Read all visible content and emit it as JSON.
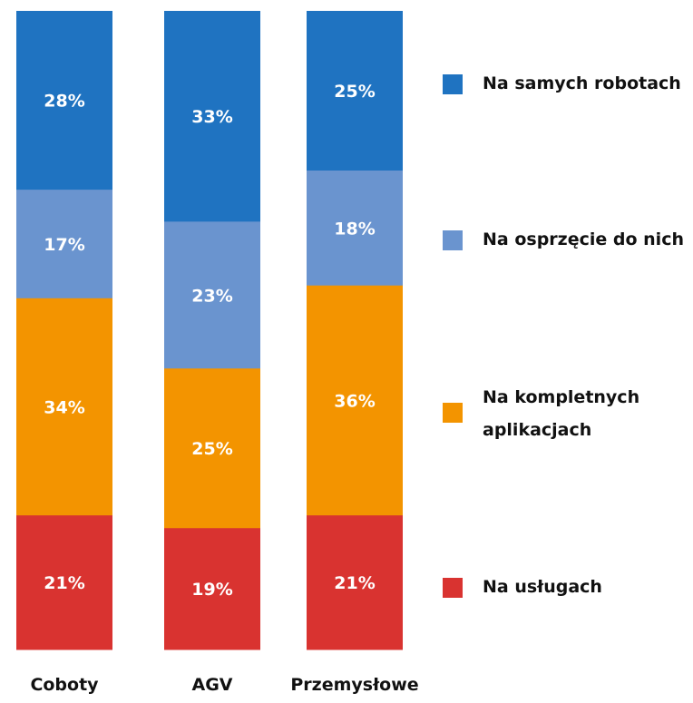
{
  "chart_data": {
    "type": "bar",
    "stacked": true,
    "percent": true,
    "categories": [
      "Coboty",
      "AGV",
      "Przemysłowe"
    ],
    "series": [
      {
        "name": "Na samych robotach",
        "color": "#1f73c1",
        "values": [
          28,
          33,
          25
        ]
      },
      {
        "name": "Na osprzęcie do nich",
        "color": "#6a94cf",
        "values": [
          17,
          23,
          18
        ]
      },
      {
        "name": "Na kompletnych aplikacjach",
        "color": "#f39400",
        "values": [
          34,
          25,
          36
        ]
      },
      {
        "name": "Na usługach",
        "color": "#d93330",
        "values": [
          21,
          19,
          21
        ]
      }
    ],
    "ylim": [
      0,
      100
    ],
    "legend_position": "right",
    "value_suffix": "%"
  },
  "legend": {
    "items": [
      {
        "label": "Na samych robotach",
        "color": "#1f73c1"
      },
      {
        "label": "Na osprzęcie do nich",
        "color": "#6a94cf"
      },
      {
        "label": "Na kompletnych aplikacjach",
        "color": "#f39400"
      },
      {
        "label": "Na usługach",
        "color": "#d93330"
      }
    ]
  }
}
